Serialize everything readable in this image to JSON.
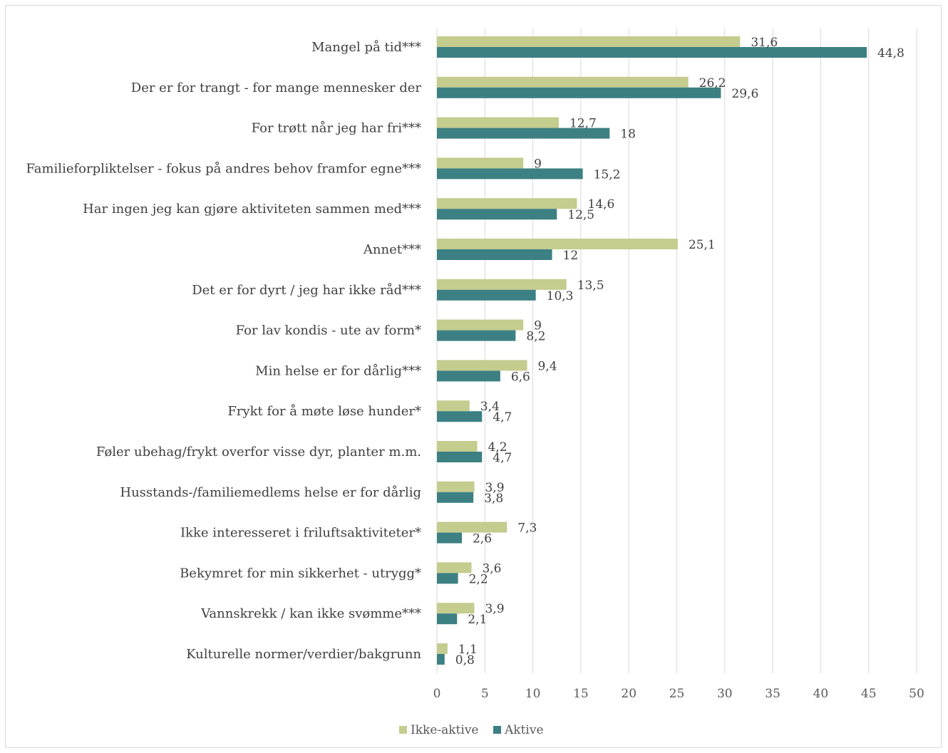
{
  "chart_data": {
    "type": "bar",
    "orientation": "horizontal",
    "categories": [
      "Mangel på tid***",
      "Der er for trangt - for mange mennesker der",
      "For trøtt når jeg har fri***",
      "Familieforpliktelser - fokus på andres behov framfor egne***",
      "Har ingen jeg kan gjøre aktiviteten sammen med***",
      "Annet***",
      "Det er for dyrt / jeg har ikke råd***",
      "For lav kondis - ute av form*",
      "Min helse er for dårlig***",
      "Frykt for å møte løse hunder*",
      "Føler ubehag/frykt overfor visse dyr, planter m.m.",
      "Husstands-/familiemedlems helse er for dårlig",
      "Ikke interesseret i friluftsaktiviteter*",
      "Bekymret for min sikkerhet - utrygg*",
      "Vannskrekk / kan ikke svømme***",
      "Kulturelle normer/verdier/bakgrunn"
    ],
    "series": [
      {
        "name": "Ikke-aktive",
        "color": "#c4cc8e",
        "values": [
          31.6,
          26.2,
          12.7,
          9,
          14.6,
          25.1,
          13.5,
          9,
          9.4,
          3.4,
          4.2,
          3.9,
          7.3,
          3.6,
          3.9,
          1.1
        ],
        "labels": [
          "31,6",
          "26,2",
          "12,7",
          "9",
          "14,6",
          "25,1",
          "13,5",
          "9",
          "9,4",
          "3,4",
          "4,2",
          "3,9",
          "7,3",
          "3,6",
          "3,9",
          "1,1"
        ]
      },
      {
        "name": "Aktive",
        "color": "#3c8083",
        "values": [
          44.8,
          29.6,
          18,
          15.2,
          12.5,
          12,
          10.3,
          8.2,
          6.6,
          4.7,
          4.7,
          3.8,
          2.6,
          2.2,
          2.1,
          0.8
        ],
        "labels": [
          "44,8",
          "29,6",
          "18",
          "15,2",
          "12,5",
          "12",
          "10,3",
          "8,2",
          "6,6",
          "4,7",
          "4,7",
          "3,8",
          "2,6",
          "2,2",
          "2,1",
          "0,8"
        ]
      }
    ],
    "xlim": [
      0,
      50
    ],
    "xticks": [
      "0",
      "5",
      "10",
      "15",
      "20",
      "25",
      "30",
      "35",
      "40",
      "45",
      "50"
    ],
    "grid": "vertical",
    "legend": "bottom"
  }
}
